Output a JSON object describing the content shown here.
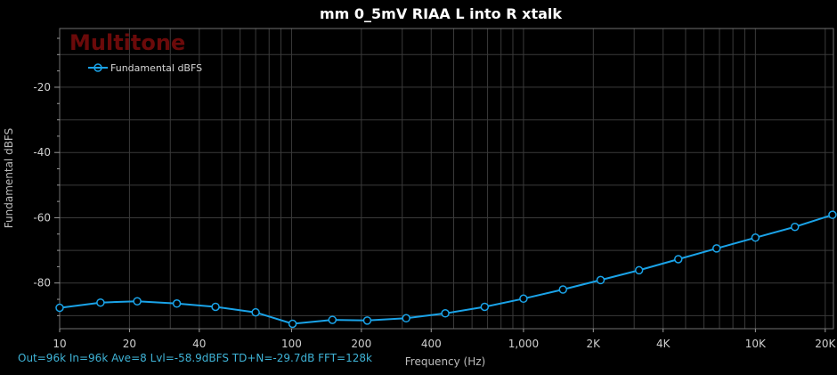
{
  "watermark": "Multitone",
  "status_line": "Out=96k In=96k Ave=8 Lvl=-58.9dBFS TD+N=-29.7dB FFT=128k",
  "colors": {
    "background": "#000000",
    "series": "#1aa3e8",
    "grid": "#3a3a3a",
    "plot_border": "#707070"
  },
  "chart_data": {
    "type": "line",
    "title": "mm 0_5mV RIAA L into R xtalk",
    "xlabel": "Frequency (Hz)",
    "ylabel": "Fundamental dBFS",
    "xscale": "log",
    "xlim": [
      10,
      21700
    ],
    "ylim": [
      -94,
      -2
    ],
    "grid": true,
    "legend_position": "top-left",
    "x_ticks": [
      10,
      20,
      40,
      100,
      200,
      400,
      1000,
      2000,
      4000,
      10000,
      20000
    ],
    "x_tick_labels": [
      "10",
      "20",
      "40",
      "100",
      "200",
      "400",
      "1,000",
      "2K",
      "4K",
      "10K",
      "20K"
    ],
    "y_ticks": [
      -20,
      -40,
      -60,
      -80
    ],
    "y_tick_labels": [
      "-20",
      "-40",
      "-60",
      "-80"
    ],
    "series": [
      {
        "name": "Fundamental dBFS",
        "x": [
          10,
          15,
          21.6,
          32,
          47,
          70,
          101,
          150,
          212,
          312,
          460,
          680,
          1000,
          1480,
          2150,
          3150,
          4650,
          6800,
          10000,
          14800,
          21500
        ],
        "values": [
          -87.6,
          -86.0,
          -85.6,
          -86.3,
          -87.3,
          -89.0,
          -92.5,
          -91.3,
          -91.5,
          -90.8,
          -89.3,
          -87.3,
          -84.8,
          -82.0,
          -79.1,
          -76.1,
          -72.7,
          -69.4,
          -66.1,
          -62.8,
          -59.1
        ]
      }
    ]
  }
}
